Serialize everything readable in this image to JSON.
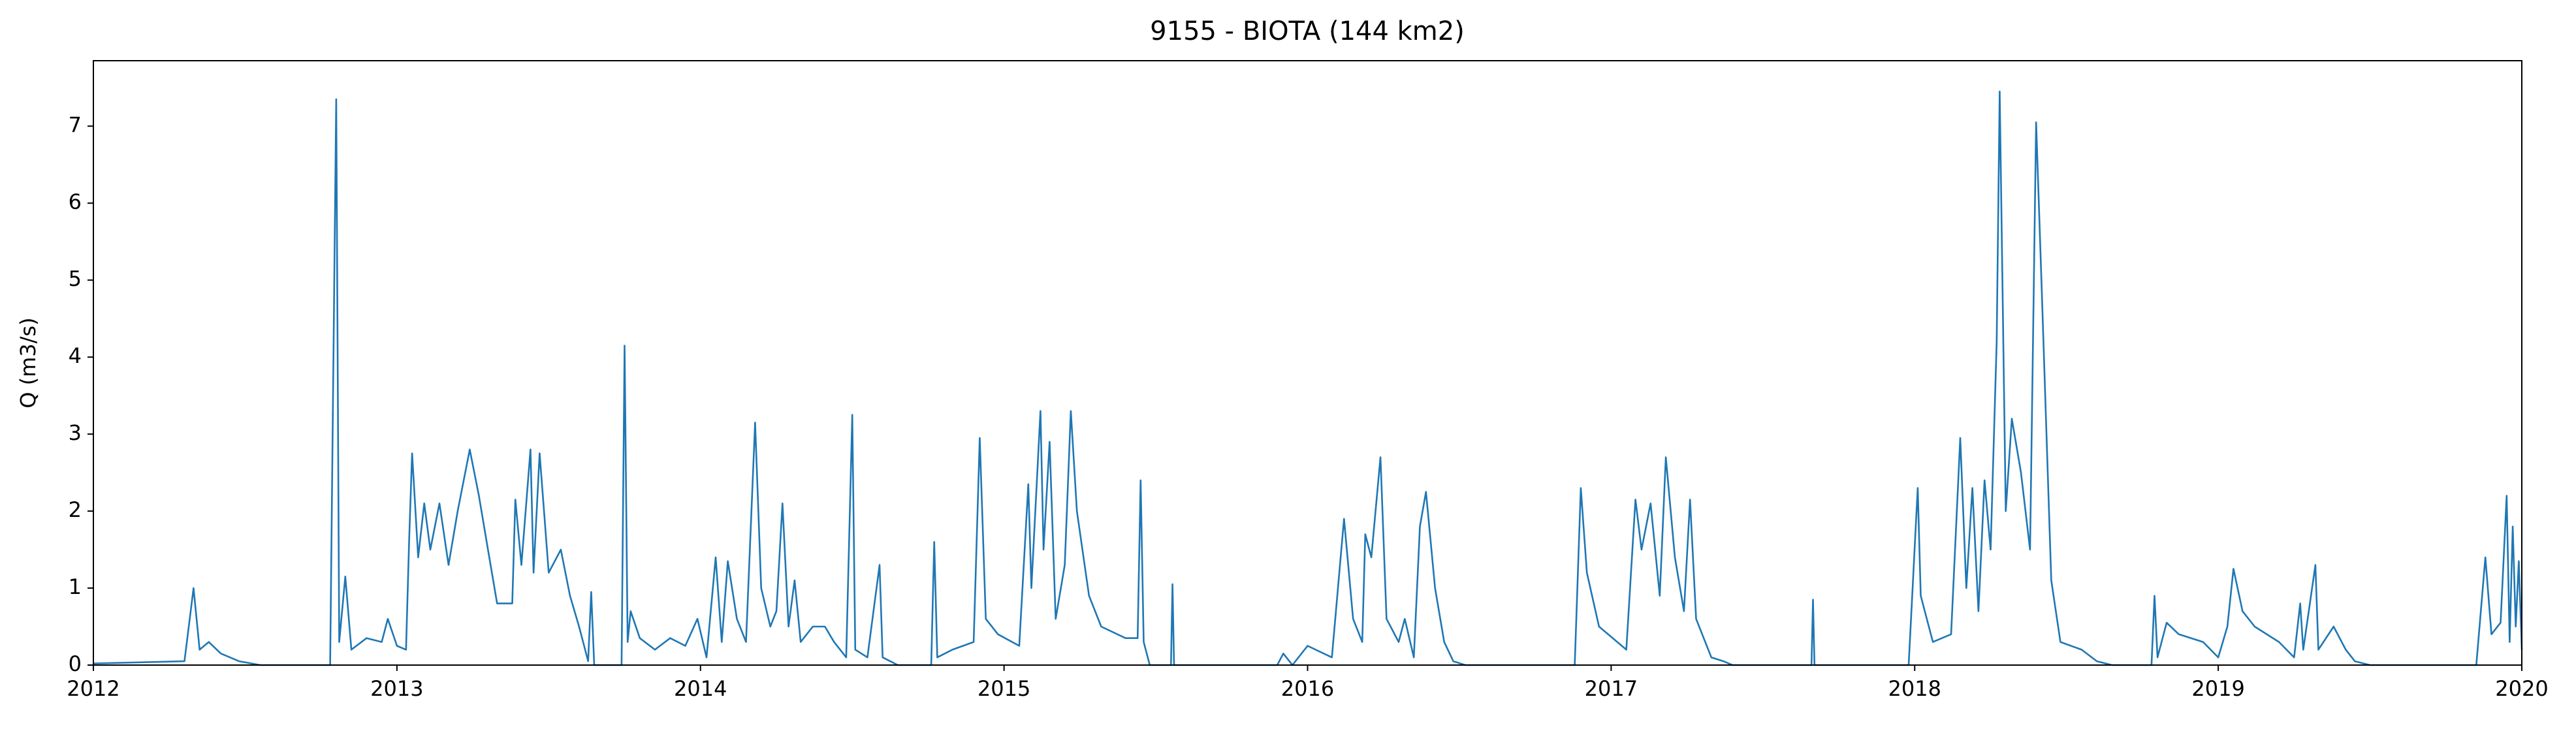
{
  "chart_data": {
    "type": "line",
    "title": "9155 - BIOTA (144 km2)",
    "y_label": "Q (m3/s)",
    "color": "#1f77b4",
    "xlim": [
      2012,
      2020
    ],
    "xticks": [
      2012,
      2013,
      2014,
      2015,
      2016,
      2017,
      2018,
      2019,
      2020
    ],
    "ylim": [
      0,
      7.85
    ],
    "yticks": [
      0,
      1,
      2,
      3,
      4,
      5,
      6,
      7
    ],
    "x": [
      2012.0,
      2012.3,
      2012.33,
      2012.35,
      2012.38,
      2012.42,
      2012.48,
      2012.55,
      2012.78,
      2012.8,
      2012.81,
      2012.83,
      2012.85,
      2012.9,
      2012.95,
      2012.97,
      2013.0,
      2013.03,
      2013.04,
      2013.05,
      2013.07,
      2013.09,
      2013.11,
      2013.14,
      2013.17,
      2013.2,
      2013.24,
      2013.27,
      2013.3,
      2013.33,
      2013.38,
      2013.39,
      2013.41,
      2013.44,
      2013.45,
      2013.47,
      2013.5,
      2013.54,
      2013.57,
      2013.6,
      2013.63,
      2013.64,
      2013.65,
      2013.74,
      2013.75,
      2013.76,
      2013.77,
      2013.8,
      2013.85,
      2013.9,
      2013.95,
      2013.99,
      2014.02,
      2014.05,
      2014.07,
      2014.09,
      2014.12,
      2014.15,
      2014.18,
      2014.2,
      2014.23,
      2014.25,
      2014.27,
      2014.29,
      2014.31,
      2014.33,
      2014.37,
      2014.41,
      2014.44,
      2014.48,
      2014.5,
      2014.51,
      2014.55,
      2014.59,
      2014.6,
      2014.65,
      2014.76,
      2014.77,
      2014.78,
      2014.83,
      2014.9,
      2014.92,
      2014.94,
      2014.98,
      2015.05,
      2015.08,
      2015.09,
      2015.12,
      2015.13,
      2015.15,
      2015.17,
      2015.2,
      2015.22,
      2015.24,
      2015.28,
      2015.32,
      2015.4,
      2015.44,
      2015.45,
      2015.46,
      2015.48,
      2015.55,
      2015.555,
      2015.56,
      2015.9,
      2015.92,
      2015.95,
      2016.0,
      2016.08,
      2016.12,
      2016.15,
      2016.18,
      2016.19,
      2016.21,
      2016.24,
      2016.26,
      2016.3,
      2016.32,
      2016.35,
      2016.37,
      2016.39,
      2016.42,
      2016.45,
      2016.48,
      2016.52,
      2016.88,
      2016.9,
      2016.92,
      2016.96,
      2017.05,
      2017.08,
      2017.1,
      2017.13,
      2017.16,
      2017.18,
      2017.21,
      2017.24,
      2017.26,
      2017.28,
      2017.33,
      2017.37,
      2017.4,
      2017.66,
      2017.665,
      2017.67,
      2017.98,
      2018.01,
      2018.02,
      2018.06,
      2018.12,
      2018.15,
      2018.17,
      2018.19,
      2018.21,
      2018.23,
      2018.25,
      2018.27,
      2018.28,
      2018.3,
      2018.32,
      2018.35,
      2018.38,
      2018.4,
      2018.42,
      2018.45,
      2018.48,
      2018.55,
      2018.6,
      2018.65,
      2018.78,
      2018.79,
      2018.8,
      2018.83,
      2018.87,
      2018.95,
      2019.0,
      2019.03,
      2019.05,
      2019.08,
      2019.12,
      2019.2,
      2019.25,
      2019.27,
      2019.28,
      2019.32,
      2019.33,
      2019.38,
      2019.42,
      2019.45,
      2019.5,
      2019.85,
      2019.88,
      2019.9,
      2019.93,
      2019.95,
      2019.96,
      2019.97,
      2019.98,
      2019.99,
      2020.0
    ],
    "values": [
      0.02,
      0.05,
      1.0,
      0.2,
      0.3,
      0.15,
      0.05,
      0,
      0,
      7.35,
      0.3,
      1.15,
      0.2,
      0.35,
      0.3,
      0.6,
      0.25,
      0.2,
      1.6,
      2.75,
      1.4,
      2.1,
      1.5,
      2.1,
      1.3,
      2.0,
      2.8,
      2.2,
      1.5,
      0.8,
      0.8,
      2.15,
      1.3,
      2.8,
      1.2,
      2.75,
      1.2,
      1.5,
      0.9,
      0.5,
      0.05,
      0.95,
      0,
      0,
      4.15,
      0.3,
      0.7,
      0.35,
      0.2,
      0.35,
      0.25,
      0.6,
      0.1,
      1.4,
      0.3,
      1.35,
      0.6,
      0.3,
      3.15,
      1.0,
      0.5,
      0.7,
      2.1,
      0.5,
      1.1,
      0.3,
      0.5,
      0.5,
      0.3,
      0.1,
      3.25,
      0.2,
      0.1,
      1.3,
      0.1,
      0,
      0,
      1.6,
      0.1,
      0.2,
      0.3,
      2.95,
      0.6,
      0.4,
      0.25,
      2.35,
      1.0,
      3.3,
      1.5,
      2.9,
      0.6,
      1.3,
      3.3,
      2.0,
      0.9,
      0.5,
      0.35,
      0.35,
      2.4,
      0.3,
      0,
      0,
      1.05,
      0,
      0,
      0.15,
      0,
      0.25,
      0.1,
      1.9,
      0.6,
      0.3,
      1.7,
      1.4,
      2.7,
      0.6,
      0.3,
      0.6,
      0.1,
      1.8,
      2.25,
      1.0,
      0.3,
      0.05,
      0,
      0,
      2.3,
      1.2,
      0.5,
      0.2,
      2.15,
      1.5,
      2.1,
      0.9,
      2.7,
      1.4,
      0.7,
      2.15,
      0.6,
      0.1,
      0.05,
      0,
      0,
      0.85,
      0,
      0,
      2.3,
      0.9,
      0.3,
      0.4,
      2.95,
      1.0,
      2.3,
      0.7,
      2.4,
      1.5,
      4.2,
      7.45,
      2.0,
      3.2,
      2.5,
      1.5,
      7.05,
      4.7,
      1.1,
      0.3,
      0.2,
      0.05,
      0,
      0,
      0.9,
      0.1,
      0.55,
      0.4,
      0.3,
      0.1,
      0.5,
      1.25,
      0.7,
      0.5,
      0.3,
      0.1,
      0.8,
      0.2,
      1.3,
      0.2,
      0.5,
      0.2,
      0.05,
      0,
      0,
      1.4,
      0.4,
      0.55,
      2.2,
      0.3,
      1.8,
      0.5,
      1.35,
      0.2
    ]
  }
}
